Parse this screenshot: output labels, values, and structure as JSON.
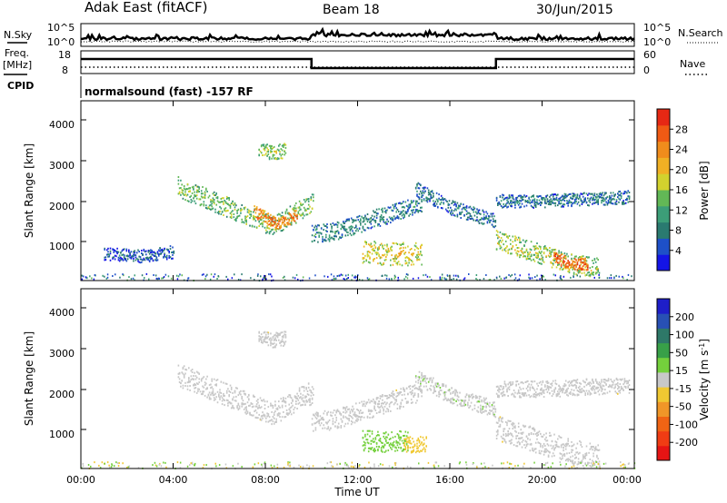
{
  "header": {
    "radar": "Adak East (fitACF)",
    "beam": "Beam 18",
    "date": "30/Jun/2015"
  },
  "top_panel": {
    "left_label": "N.Sky",
    "left_ticks": [
      "10^5",
      "10^0"
    ],
    "right_ticks": [
      "10^5",
      "10^0"
    ],
    "right_label": "N.Search"
  },
  "freq_panel": {
    "left_label_line1": "Freq.",
    "left_label_line2": "[MHz]",
    "left_ticks": [
      "18",
      "8"
    ],
    "right_ticks": [
      "60",
      "0"
    ],
    "right_label": "Nave"
  },
  "cpid": {
    "label": "CPID",
    "text": "normalsound (fast) -157 RF"
  },
  "x_axis": {
    "tick_labels": [
      "00:00",
      "04:00",
      "08:00",
      "12:00",
      "16:00",
      "20:00",
      "00:00"
    ],
    "label": "Time UT"
  },
  "power_panel": {
    "y_label": "Slant Range [km]",
    "y_ticks": [
      "1000",
      "2000",
      "3000",
      "4000"
    ],
    "cbar_label": "Power [dB]",
    "cbar_ticks": [
      "4",
      "8",
      "12",
      "16",
      "20",
      "24",
      "28"
    ],
    "cbar_colors": [
      "#1414e6",
      "#1e50c8",
      "#2a7a70",
      "#3c9e78",
      "#62b856",
      "#d2d22e",
      "#f0b024",
      "#f08c1c",
      "#f05a14",
      "#e62814"
    ]
  },
  "velocity_panel": {
    "y_label": "Slant Range [km]",
    "y_ticks": [
      "1000",
      "2000",
      "3000",
      "4000"
    ],
    "cbar_label": "Velocity [m s",
    "cbar_label_sup": "-1",
    "cbar_label_end": "]",
    "cbar_ticks": [
      "200",
      "100",
      "50",
      "15",
      "-15",
      "-50",
      "-100",
      "-200"
    ],
    "cbar_colors": [
      "#1e1ec8",
      "#2850b4",
      "#2e7868",
      "#38a048",
      "#74d03c",
      "#c8c8c8",
      "#f0c832",
      "#f09628",
      "#f06414",
      "#f03c14",
      "#e61414"
    ]
  },
  "chart_data": {
    "type": "heatmap",
    "x_units": "hours UT",
    "x_range": [
      0,
      24
    ],
    "y_units": "km",
    "y_range": [
      180,
      4600
    ],
    "power_clusters": [
      {
        "t0": 4.2,
        "t1": 10.1,
        "r_start": 2500,
        "r_end": 2100,
        "r_dip": 1550,
        "r_mid_t": 8.3,
        "width": 250,
        "value": 14
      },
      {
        "t0": 7.5,
        "t1": 9.4,
        "r_start": 1900,
        "r_end": 1800,
        "r_dip": 1600,
        "r_mid_t": 8.5,
        "width": 150,
        "value": 24
      },
      {
        "t0": 10.0,
        "t1": 14.8,
        "r_start": 1350,
        "r_end": 2100,
        "r_dip": 1400,
        "r_mid_t": 11.0,
        "width": 220,
        "value": 9
      },
      {
        "t0": 14.5,
        "t1": 18.0,
        "r_start": 2450,
        "r_end": 1650,
        "r_dip": 2000,
        "r_mid_t": 16.0,
        "width": 180,
        "value": 8
      },
      {
        "t0": 12.2,
        "t1": 14.8,
        "r_start": 900,
        "r_end": 850,
        "r_dip": 850,
        "r_mid_t": 13.5,
        "width": 280,
        "value": 18
      },
      {
        "t0": 18.0,
        "t1": 22.5,
        "r_start": 1200,
        "r_end": 500,
        "r_dip": 600,
        "r_mid_t": 21.3,
        "width": 240,
        "value": 16
      },
      {
        "t0": 20.5,
        "t1": 22.0,
        "r_start": 750,
        "r_end": 600,
        "r_dip": 600,
        "r_mid_t": 21.3,
        "width": 150,
        "value": 26
      },
      {
        "t0": 18.0,
        "t1": 23.8,
        "r_start": 2150,
        "r_end": 2250,
        "r_dip": 2150,
        "r_mid_t": 20.0,
        "width": 160,
        "value": 8
      },
      {
        "t0": 1.0,
        "t1": 4.0,
        "r_start": 850,
        "r_end": 900,
        "r_dip": 800,
        "r_mid_t": 2.5,
        "width": 160,
        "value": 6
      },
      {
        "t0": 7.7,
        "t1": 8.9,
        "r_start": 3400,
        "r_end": 3400,
        "r_dip": 3350,
        "r_mid_t": 8.3,
        "width": 180,
        "value": 15
      }
    ],
    "velocity_clusters": [
      {
        "t0": 4.2,
        "t1": 10.1,
        "r_start": 2500,
        "r_end": 2100,
        "r_dip": 1550,
        "r_mid_t": 8.3,
        "width": 280,
        "value": 0
      },
      {
        "t0": 10.0,
        "t1": 14.8,
        "r_start": 1350,
        "r_end": 2100,
        "r_dip": 1400,
        "r_mid_t": 11.0,
        "width": 240,
        "value": 0
      },
      {
        "t0": 14.5,
        "t1": 18.0,
        "r_start": 2450,
        "r_end": 1650,
        "r_dip": 2000,
        "r_mid_t": 16.0,
        "width": 200,
        "value": 10
      },
      {
        "t0": 12.2,
        "t1": 14.2,
        "r_start": 880,
        "r_end": 880,
        "r_dip": 850,
        "r_mid_t": 13.3,
        "width": 260,
        "value": 40
      },
      {
        "t0": 14.0,
        "t1": 15.0,
        "r_start": 800,
        "r_end": 780,
        "r_dip": 780,
        "r_mid_t": 14.5,
        "width": 200,
        "value": -30
      },
      {
        "t0": 18.0,
        "t1": 22.5,
        "r_start": 1200,
        "r_end": 500,
        "r_dip": 600,
        "r_mid_t": 21.3,
        "width": 300,
        "value": 0
      },
      {
        "t0": 18.0,
        "t1": 23.8,
        "r_start": 2150,
        "r_end": 2250,
        "r_dip": 2150,
        "r_mid_t": 20.0,
        "width": 200,
        "value": 0
      },
      {
        "t0": 7.7,
        "t1": 8.9,
        "r_start": 3400,
        "r_end": 3400,
        "r_dip": 3350,
        "r_mid_t": 8.3,
        "width": 180,
        "value": 0
      }
    ]
  }
}
